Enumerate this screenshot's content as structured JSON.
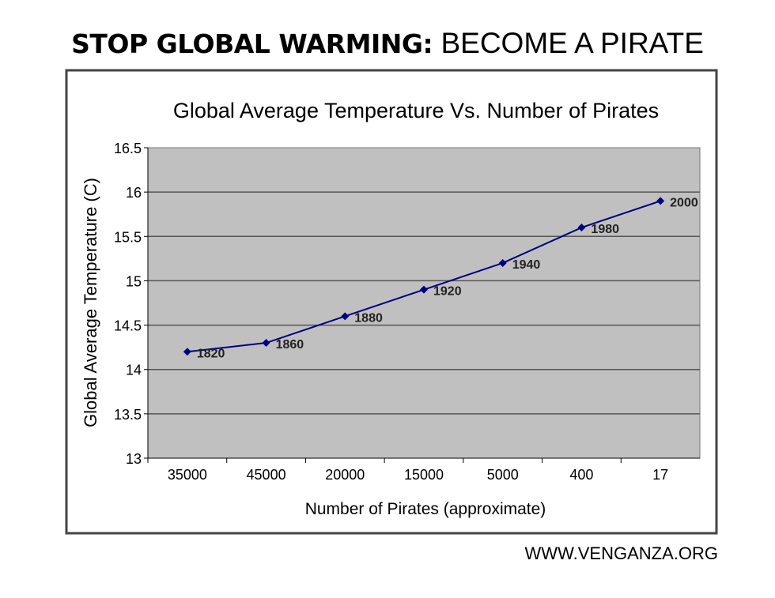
{
  "headline": {
    "bold": "STOP GLOBAL WARMING:",
    "regular": "BECOME A PIRATE"
  },
  "footer": "WWW.VENGANZA.ORG",
  "chart_data": {
    "type": "line",
    "title": "Global Average Temperature Vs. Number of Pirates",
    "xlabel": "Number of Pirates (approximate)",
    "ylabel": "Global Average Temperature (C)",
    "categories": [
      "35000",
      "45000",
      "20000",
      "15000",
      "5000",
      "400",
      "17"
    ],
    "point_labels": [
      "1820",
      "1860",
      "1880",
      "1920",
      "1940",
      "1980",
      "2000"
    ],
    "values": [
      14.2,
      14.3,
      14.6,
      14.9,
      15.2,
      15.6,
      15.9
    ],
    "ylim": [
      13,
      16.5
    ],
    "yticks": [
      "13",
      "13.5",
      "14",
      "14.5",
      "15",
      "15.5",
      "16",
      "16.5"
    ],
    "grid": true,
    "colors": {
      "line": "#000080",
      "plot_background": "#c0c0c0",
      "grid": "#555555"
    }
  }
}
